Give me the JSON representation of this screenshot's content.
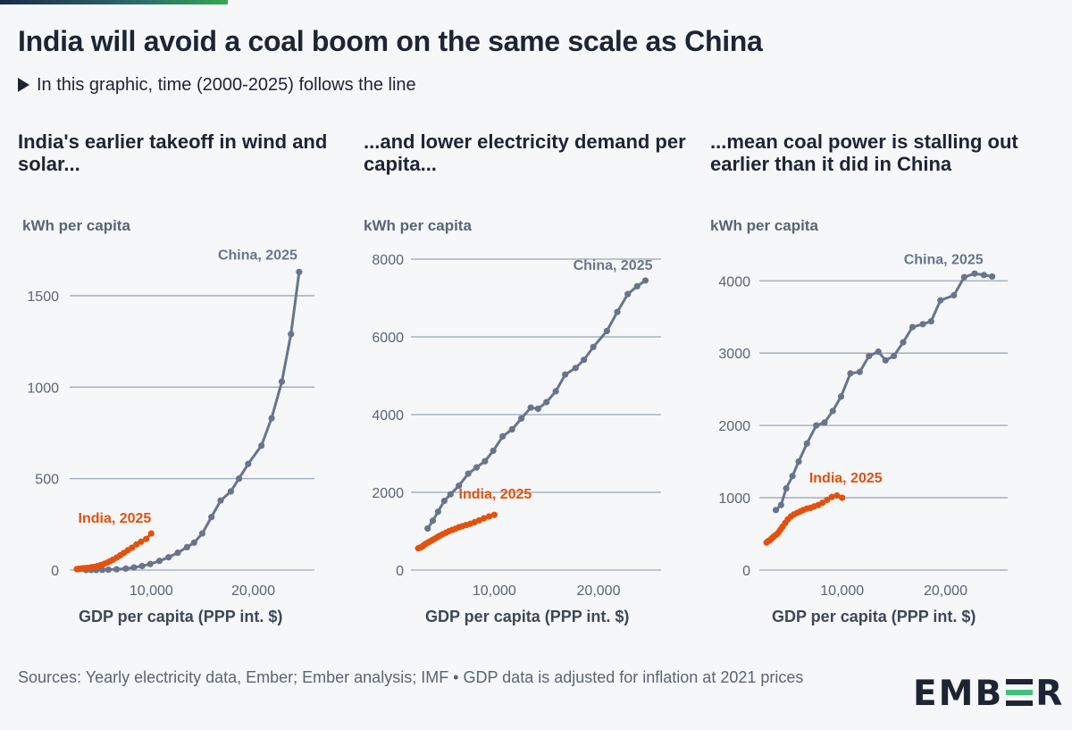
{
  "title": "India will avoid a coal boom on the same scale as China",
  "subtitle": "In this graphic, time (2000-2025) follows the line",
  "footer": "Sources: Yearly electricity data, Ember; Ember analysis; IMF • GDP data is adjusted for inflation at 2021 prices",
  "logo": {
    "text_left": "EMB",
    "text_right": "R"
  },
  "colors": {
    "china": "#69748c",
    "india": "#e2520f",
    "grid": "#9ca6b8",
    "axis_text": "#5b6474"
  },
  "panels": [
    {
      "title": "India's earlier takeoff in wind and solar...",
      "unit": "kWh per capita",
      "xlabel": "GDP per capita (PPP int. $)"
    },
    {
      "title": "...and lower electricity demand per capita...",
      "unit": "kWh per capita",
      "xlabel": "GDP per capita (PPP int. $)"
    },
    {
      "title": "...mean coal power is stalling out earlier than it did in China",
      "unit": "kWh per capita",
      "xlabel": "GDP per capita (PPP int. $)"
    }
  ],
  "chart_data": [
    {
      "type": "line",
      "title": "India's earlier takeoff in wind and solar...",
      "xlabel": "GDP per capita (PPP int. $)",
      "ylabel": "kWh per capita",
      "xlim": [
        2000,
        26000
      ],
      "ylim": [
        0,
        1700
      ],
      "xticks": [
        10000,
        20000
      ],
      "xtick_labels": [
        "10,000",
        "20,000"
      ],
      "yticks": [
        0,
        500,
        1000,
        1500
      ],
      "ytick_labels": [
        "0",
        "500",
        "1000",
        "1500"
      ],
      "grid": true,
      "series": [
        {
          "name": "China",
          "end_label": "China, 2025",
          "x": [
            3600,
            4100,
            4600,
            5200,
            5800,
            6600,
            7500,
            8300,
            9100,
            9900,
            10800,
            11700,
            12600,
            13500,
            14200,
            15000,
            15900,
            16800,
            17800,
            18600,
            19500,
            20800,
            21800,
            22800,
            23700,
            24500
          ],
          "y": [
            0,
            0,
            0,
            1,
            2,
            4,
            8,
            14,
            22,
            33,
            50,
            70,
            95,
            125,
            150,
            200,
            290,
            380,
            430,
            500,
            580,
            680,
            830,
            1030,
            1290,
            1630
          ]
        },
        {
          "name": "India",
          "end_label": "India, 2025",
          "x": [
            2700,
            2850,
            3000,
            3150,
            3300,
            3450,
            3650,
            3850,
            4050,
            4250,
            4500,
            4750,
            5050,
            5350,
            5650,
            5950,
            6250,
            6600,
            6950,
            7300,
            7700,
            8100,
            8550,
            9000,
            9500,
            10000
          ],
          "y": [
            5,
            6,
            7,
            8,
            9,
            10,
            11,
            12,
            14,
            16,
            18,
            22,
            27,
            33,
            40,
            48,
            57,
            68,
            80,
            93,
            108,
            122,
            140,
            155,
            170,
            200
          ]
        }
      ]
    },
    {
      "type": "line",
      "title": "...and lower electricity demand per capita...",
      "xlabel": "GDP per capita (PPP int. $)",
      "ylabel": "kWh per capita",
      "xlim": [
        2000,
        26000
      ],
      "ylim": [
        0,
        8000
      ],
      "xticks": [
        10000,
        20000
      ],
      "xtick_labels": [
        "10,000",
        "20,000"
      ],
      "yticks": [
        0,
        2000,
        4000,
        6000,
        8000
      ],
      "ytick_labels": [
        "0",
        "2000",
        "4000",
        "6000",
        "8000"
      ],
      "grid": true,
      "series": [
        {
          "name": "China",
          "end_label": "China, 2025",
          "x": [
            3600,
            4100,
            4600,
            5200,
            5800,
            6600,
            7500,
            8300,
            9100,
            9900,
            10800,
            11700,
            12600,
            13500,
            14200,
            15000,
            15900,
            16800,
            17800,
            18600,
            19500,
            20800,
            21800,
            22800,
            23700,
            24500
          ],
          "y": [
            1070,
            1270,
            1500,
            1780,
            1950,
            2170,
            2480,
            2640,
            2800,
            3070,
            3440,
            3620,
            3900,
            4180,
            4150,
            4320,
            4600,
            5030,
            5200,
            5410,
            5740,
            6150,
            6640,
            7100,
            7300,
            7450
          ]
        },
        {
          "name": "India",
          "end_label": "India, 2025",
          "x": [
            2700,
            2850,
            3000,
            3150,
            3300,
            3450,
            3650,
            3850,
            4050,
            4250,
            4500,
            4750,
            5050,
            5350,
            5650,
            5950,
            6250,
            6600,
            6950,
            7300,
            7700,
            8100,
            8550,
            9000,
            9500,
            10000
          ],
          "y": [
            560,
            575,
            590,
            620,
            650,
            680,
            710,
            740,
            770,
            800,
            840,
            880,
            920,
            960,
            1000,
            1030,
            1060,
            1100,
            1130,
            1160,
            1190,
            1230,
            1280,
            1330,
            1380,
            1420
          ]
        }
      ]
    },
    {
      "type": "line",
      "title": "...mean coal power is stalling out earlier than it did in China",
      "xlabel": "GDP per capita (PPP int. $)",
      "ylabel": "kWh per capita",
      "xlim": [
        2000,
        26000
      ],
      "ylim": [
        0,
        4300
      ],
      "xticks": [
        10000,
        20000
      ],
      "xtick_labels": [
        "10,000",
        "20,000"
      ],
      "yticks": [
        0,
        1000,
        2000,
        3000,
        4000
      ],
      "ytick_labels": [
        "0",
        "1000",
        "2000",
        "3000",
        "4000"
      ],
      "grid": true,
      "series": [
        {
          "name": "China",
          "end_label": "China, 2025",
          "x": [
            3600,
            4100,
            4600,
            5200,
            5800,
            6600,
            7500,
            8300,
            9100,
            9900,
            10800,
            11700,
            12600,
            13500,
            14200,
            15000,
            15900,
            16800,
            17800,
            18600,
            19500,
            20800,
            21800,
            22800,
            23700,
            24500
          ],
          "y": [
            830,
            900,
            1130,
            1300,
            1500,
            1750,
            2000,
            2040,
            2200,
            2400,
            2720,
            2740,
            2960,
            3020,
            2900,
            2960,
            3150,
            3360,
            3400,
            3440,
            3730,
            3800,
            4050,
            4100,
            4080,
            4060
          ]
        },
        {
          "name": "India",
          "end_label": "India, 2025",
          "x": [
            2700,
            2850,
            3000,
            3150,
            3300,
            3450,
            3650,
            3850,
            4050,
            4250,
            4500,
            4750,
            5050,
            5350,
            5650,
            5950,
            6250,
            6600,
            6950,
            7300,
            7700,
            8100,
            8550,
            9000,
            9500,
            10000
          ],
          "y": [
            380,
            400,
            410,
            430,
            450,
            470,
            490,
            520,
            560,
            600,
            650,
            700,
            740,
            770,
            790,
            810,
            830,
            850,
            860,
            880,
            900,
            930,
            970,
            1010,
            1030,
            1000
          ]
        }
      ]
    }
  ]
}
